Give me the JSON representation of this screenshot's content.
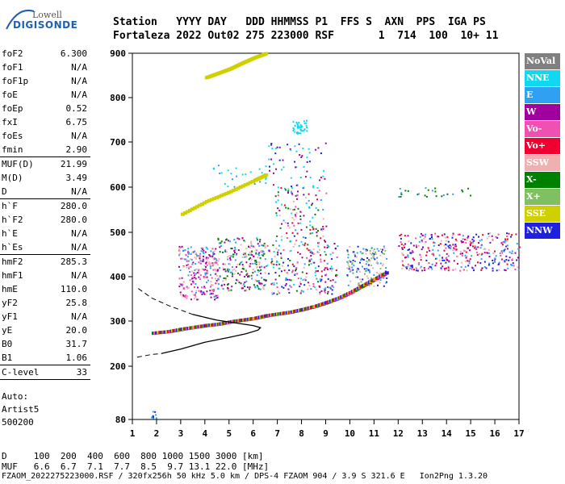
{
  "logo": {
    "line1": "Lowell",
    "line2": "DIGISONDE"
  },
  "header": {
    "row1": "Station   YYYY DAY   DDD HHMMSS P1  FFS S  AXN  PPS  IGA PS",
    "row2": "Fortaleza 2022 Out02 275 223000 RSF       1  714  100  10+ 11"
  },
  "params_group1": [
    {
      "name": "foF2",
      "value": "6.300"
    },
    {
      "name": "foF1",
      "value": "N/A"
    },
    {
      "name": "foF1p",
      "value": "N/A"
    },
    {
      "name": "foE",
      "value": "N/A"
    },
    {
      "name": "foEp",
      "value": "0.52"
    },
    {
      "name": "fxI",
      "value": "6.75"
    },
    {
      "name": "foEs",
      "value": "N/A"
    },
    {
      "name": "fmin",
      "value": "2.90"
    }
  ],
  "params_group2": [
    {
      "name": "MUF(D)",
      "value": "21.99"
    },
    {
      "name": "M(D)",
      "value": "3.49"
    },
    {
      "name": "D",
      "value": "N/A"
    }
  ],
  "params_group3": [
    {
      "name": "h`F",
      "value": "280.0"
    },
    {
      "name": "h`F2",
      "value": "280.0"
    },
    {
      "name": "h`E",
      "value": "N/A"
    },
    {
      "name": "h`Es",
      "value": "N/A"
    }
  ],
  "params_group4": [
    {
      "name": "hmF2",
      "value": "285.3"
    },
    {
      "name": "hmF1",
      "value": "N/A"
    },
    {
      "name": "hmE",
      "value": "110.0"
    },
    {
      "name": "yF2",
      "value": "25.8"
    },
    {
      "name": "yF1",
      "value": "N/A"
    },
    {
      "name": "yE",
      "value": "20.0"
    },
    {
      "name": "B0",
      "value": "31.7"
    },
    {
      "name": "B1",
      "value": "1.06"
    }
  ],
  "params_group5": [
    {
      "name": "C-level",
      "value": "33"
    }
  ],
  "auto": {
    "line1": "Auto:",
    "line2": "Artist5",
    "line3": "500200"
  },
  "legend": [
    {
      "label": "NoVal",
      "color": "#808080"
    },
    {
      "label": "NNE",
      "color": "#10d8f0"
    },
    {
      "label": "E",
      "color": "#30a0f0"
    },
    {
      "label": "W",
      "color": "#a000a0"
    },
    {
      "label": "Vo-",
      "color": "#f050b0"
    },
    {
      "label": "Vo+",
      "color": "#f00030"
    },
    {
      "label": "SSW",
      "color": "#f0b0b0"
    },
    {
      "label": "X-",
      "color": "#008000"
    },
    {
      "label": "X+",
      "color": "#80c060"
    },
    {
      "label": "SSE",
      "color": "#d0d000"
    },
    {
      "label": "NNW",
      "color": "#2020e0"
    }
  ],
  "chart_data": {
    "type": "scatter",
    "xlim": [
      1,
      17
    ],
    "ylim": [
      80,
      900
    ],
    "xticks": [
      "1",
      "2",
      "3",
      "4",
      "5",
      "6",
      "7",
      "8",
      "9",
      "10",
      "11",
      "12",
      "13",
      "14",
      "15",
      "16",
      "17"
    ],
    "yticks": [
      "80",
      "200",
      "300",
      "400",
      "500",
      "600",
      "700",
      "800",
      "900"
    ],
    "ytick_values": [
      80,
      200,
      300,
      400,
      500,
      600,
      700,
      800,
      900
    ],
    "trace_f2": [
      [
        1.8,
        273
      ],
      [
        2.5,
        277
      ],
      [
        3.0,
        282
      ],
      [
        3.5,
        286
      ],
      [
        4.0,
        290
      ],
      [
        4.5,
        293
      ],
      [
        5.0,
        298
      ],
      [
        5.5,
        302
      ],
      [
        6.0,
        306
      ],
      [
        6.5,
        312
      ],
      [
        7.0,
        316
      ],
      [
        7.5,
        320
      ],
      [
        8.0,
        326
      ],
      [
        8.5,
        333
      ],
      [
        9.0,
        342
      ],
      [
        9.5,
        352
      ],
      [
        10.0,
        365
      ],
      [
        10.5,
        380
      ],
      [
        11.0,
        395
      ],
      [
        11.5,
        410
      ]
    ],
    "trace_f2_upper": [
      [
        3.0,
        540
      ],
      [
        4.0,
        568
      ],
      [
        5.0,
        590
      ],
      [
        6.0,
        615
      ],
      [
        6.5,
        628
      ]
    ],
    "trace_top": [
      [
        4.0,
        845
      ],
      [
        4.5,
        855
      ],
      [
        5.0,
        865
      ],
      [
        5.5,
        878
      ],
      [
        6.0,
        890
      ],
      [
        6.5,
        900
      ]
    ],
    "profile": [
      [
        2.2,
        228
      ],
      [
        3.0,
        238
      ],
      [
        4.0,
        253
      ],
      [
        5.0,
        264
      ],
      [
        5.7,
        272
      ],
      [
        6.2,
        280
      ],
      [
        6.3,
        285.3
      ],
      [
        6.0,
        290
      ],
      [
        5.5,
        294
      ],
      [
        4.5,
        302
      ],
      [
        3.5,
        315
      ],
      [
        2.5,
        335
      ],
      [
        1.8,
        352
      ],
      [
        1.2,
        375
      ]
    ],
    "profile_dashed": true
  },
  "bottom": {
    "row1": "D     100  200  400  600  800 1000 1500 3000 [km]",
    "row2": "MUF   6.6  6.7  7.1  7.7  8.5  9.7 13.1 22.0 [MHz]"
  },
  "footer": "FZAOM_2022275223000.RSF / 320fx256h 50 kHz 5.0 km / DPS-4 FZAOM 904 / 3.9 S 321.6 E   Ion2Png 1.3.20"
}
